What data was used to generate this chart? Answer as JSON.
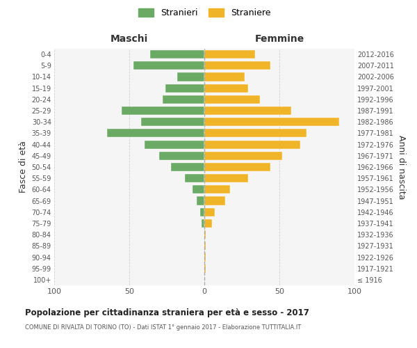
{
  "age_groups": [
    "100+",
    "95-99",
    "90-94",
    "85-89",
    "80-84",
    "75-79",
    "70-74",
    "65-69",
    "60-64",
    "55-59",
    "50-54",
    "45-49",
    "40-44",
    "35-39",
    "30-34",
    "25-29",
    "20-24",
    "15-19",
    "10-14",
    "5-9",
    "0-4"
  ],
  "birth_years": [
    "≤ 1916",
    "1917-1921",
    "1922-1926",
    "1927-1931",
    "1932-1936",
    "1937-1941",
    "1942-1946",
    "1947-1951",
    "1952-1956",
    "1957-1961",
    "1962-1966",
    "1967-1971",
    "1972-1976",
    "1977-1981",
    "1982-1986",
    "1987-1991",
    "1992-1996",
    "1997-2001",
    "2002-2006",
    "2007-2011",
    "2012-2016"
  ],
  "maschi": [
    0,
    0,
    0,
    0,
    0,
    2,
    3,
    5,
    8,
    13,
    22,
    30,
    40,
    65,
    42,
    55,
    28,
    26,
    18,
    47,
    36
  ],
  "femmine": [
    0,
    1,
    1,
    1,
    1,
    5,
    7,
    14,
    17,
    29,
    44,
    52,
    64,
    68,
    90,
    58,
    37,
    29,
    27,
    44,
    34
  ],
  "maschi_color": "#6aaa64",
  "femmine_color": "#f0b429",
  "background_color": "#ffffff",
  "axes_bg_color": "#f5f5f5",
  "grid_color": "#cccccc",
  "title": "Popolazione per cittadinanza straniera per età e sesso - 2017",
  "subtitle": "COMUNE DI RIVALTA DI TORINO (TO) - Dati ISTAT 1° gennaio 2017 - Elaborazione TUTTITALIA.IT",
  "ylabel_left": "Fasce di età",
  "ylabel_right": "Anni di nascita",
  "xlabel_maschi": "Maschi",
  "xlabel_femmine": "Femmine",
  "legend_maschi": "Stranieri",
  "legend_femmine": "Straniere",
  "xlim": 100,
  "dashed_line_color": "#aaaaaa"
}
